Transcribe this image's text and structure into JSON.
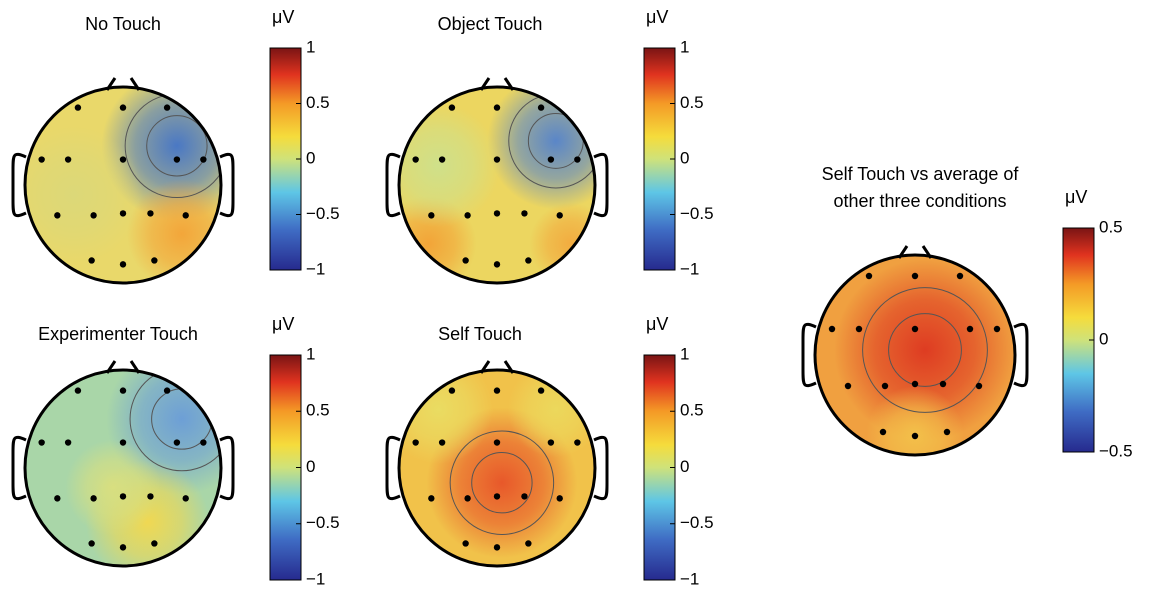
{
  "chart_data": [
    {
      "type": "topoplot",
      "title": [
        "No Touch"
      ],
      "colorbar_label": "μV",
      "clim": [
        -1,
        1
      ],
      "cticks": [
        {
          "value": -1,
          "label": "−1"
        },
        {
          "value": -0.5,
          "label": "−0.5"
        },
        0,
        0.5,
        1
      ]
    },
    {
      "type": "topoplot",
      "title": [
        "Object Touch"
      ],
      "colorbar_label": "μV",
      "clim": [
        -1,
        1
      ],
      "cticks": [
        {
          "value": -1,
          "label": "−1"
        },
        {
          "value": -0.5,
          "label": "−0.5"
        },
        0,
        0.5,
        1
      ]
    },
    {
      "type": "topoplot",
      "title": [
        "Experimenter Touch"
      ],
      "colorbar_label": "μV",
      "clim": [
        -1,
        1
      ],
      "cticks": [
        {
          "value": -1,
          "label": "−1"
        },
        {
          "value": -0.5,
          "label": "−0.5"
        },
        0,
        0.5,
        1
      ]
    },
    {
      "type": "topoplot",
      "title": [
        "Self  Touch"
      ],
      "colorbar_label": "μV",
      "clim": [
        -1,
        1
      ],
      "cticks": [
        {
          "value": -1,
          "label": "−1"
        },
        {
          "value": -0.5,
          "label": "−0.5"
        },
        0,
        0.5,
        1
      ]
    },
    {
      "type": "topoplot",
      "title": [
        "Self  Touch vs average of",
        "other three conditions"
      ],
      "colorbar_label": "μV",
      "clim": [
        -0.5,
        0.5
      ],
      "cticks": [
        {
          "value": -0.5,
          "label": "−0.5"
        },
        0,
        0.5
      ]
    }
  ]
}
